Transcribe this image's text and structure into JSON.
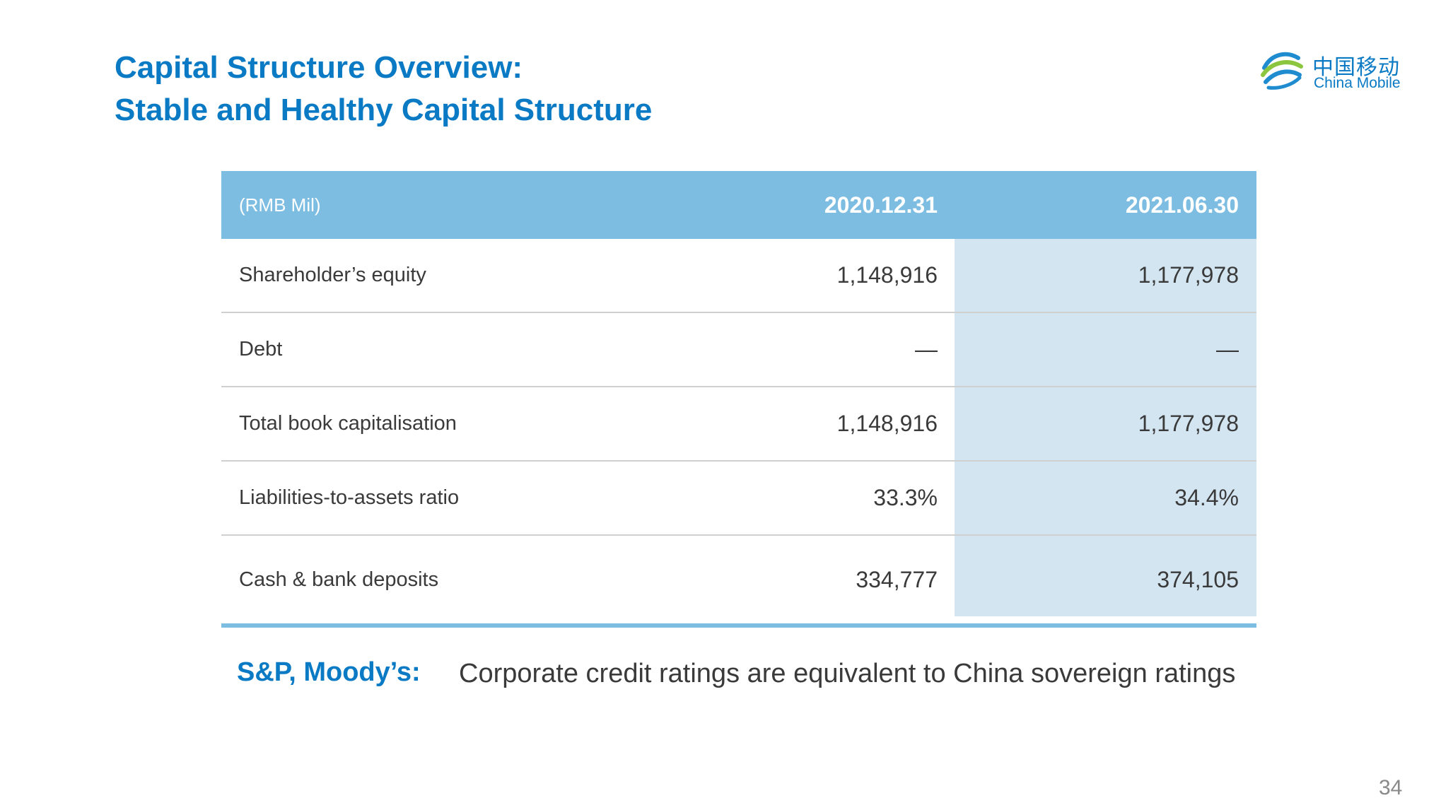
{
  "title": {
    "line1": "Capital Structure Overview:",
    "line2": "Stable and Healthy Capital Structure"
  },
  "logo": {
    "chinese": "中国移动",
    "english": "China Mobile",
    "icon": "china-mobile-logo-icon"
  },
  "table": {
    "unit_label": "(RMB Mil)",
    "columns": [
      "2020.12.31",
      "2021.06.30"
    ],
    "rows": [
      {
        "label": "Shareholder’s equity",
        "values": [
          "1,148,916",
          "1,177,978"
        ]
      },
      {
        "label": "Debt",
        "values": [
          "—",
          "—"
        ]
      },
      {
        "label": "Total book capitalisation",
        "values": [
          "1,148,916",
          "1,177,978"
        ]
      },
      {
        "label": "Liabilities-to-assets ratio",
        "values": [
          "33.3%",
          "34.4%"
        ]
      },
      {
        "label": "Cash & bank deposits",
        "values": [
          "334,777",
          "374,105"
        ]
      }
    ]
  },
  "note": {
    "label": "S&P, Moody’s:",
    "text": "Corporate credit ratings are equivalent to China sovereign ratings"
  },
  "page_number": "34",
  "colors": {
    "accent": "#0a7ac4",
    "header_bg": "#7dbde2",
    "shade_bg": "#d3e5f1"
  }
}
